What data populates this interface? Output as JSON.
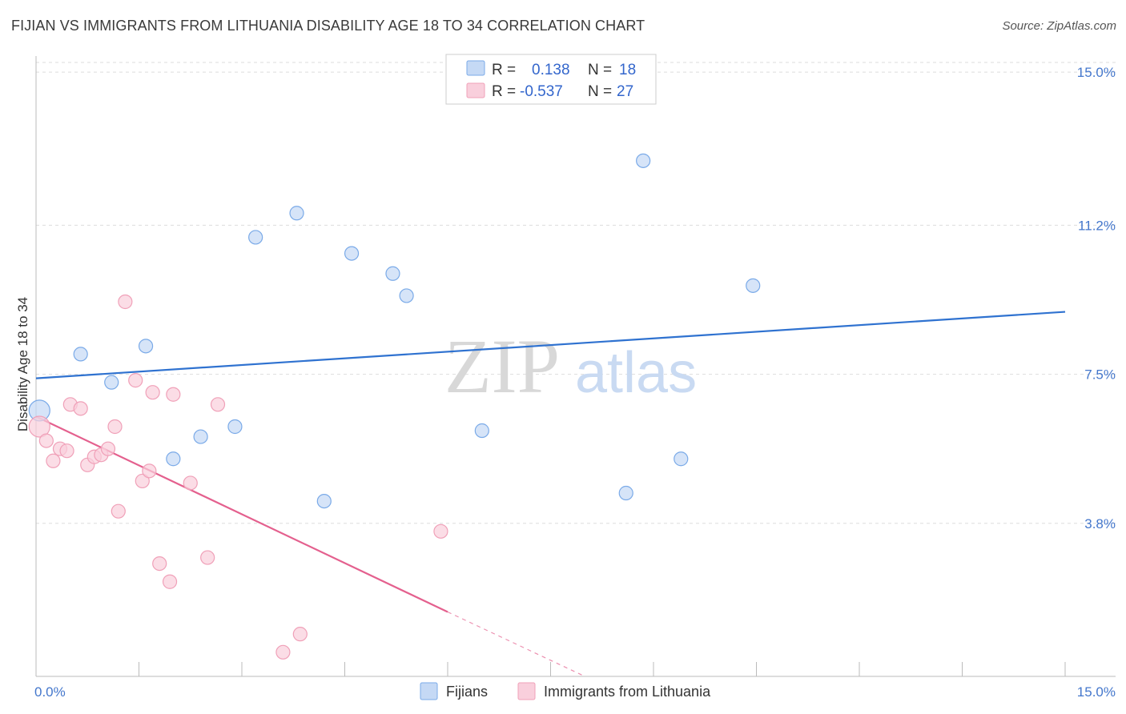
{
  "title": "FIJIAN VS IMMIGRANTS FROM LITHUANIA DISABILITY AGE 18 TO 34 CORRELATION CHART",
  "source": "Source: ZipAtlas.com",
  "watermark": {
    "zip": "ZIP",
    "atlas": "atlas"
  },
  "chart_data": {
    "type": "scatter",
    "title": "FIJIAN VS IMMIGRANTS FROM LITHUANIA DISABILITY AGE 18 TO 34 CORRELATION CHART",
    "xlabel": "",
    "ylabel": "Disability Age 18 to 34",
    "xlim": [
      0,
      15
    ],
    "ylim": [
      0,
      15.4
    ],
    "x_tick_labels": [
      "0.0%",
      "15.0%"
    ],
    "y_ticks": [
      3.8,
      7.5,
      11.2,
      15.0
    ],
    "y_tick_labels": [
      "3.8%",
      "7.5%",
      "11.2%",
      "15.0%"
    ],
    "legend": {
      "rows": [
        {
          "r_label": "R =",
          "r_value": "0.138",
          "n_label": "N =",
          "n_value": "18"
        },
        {
          "r_label": "R =",
          "r_value": "-0.537",
          "n_label": "N =",
          "n_value": "27"
        }
      ]
    },
    "series": [
      {
        "name": "Fijians",
        "color": "#7aaae8",
        "fill": "#c5d9f5",
        "trend": {
          "x0": 0,
          "y0": 7.4,
          "x1": 15,
          "y1": 9.05,
          "color": "#2f72d0"
        },
        "points": [
          {
            "x": 0.05,
            "y": 6.6,
            "big": true
          },
          {
            "x": 0.65,
            "y": 8.0
          },
          {
            "x": 1.1,
            "y": 7.3
          },
          {
            "x": 1.6,
            "y": 8.2
          },
          {
            "x": 2.0,
            "y": 5.4
          },
          {
            "x": 2.4,
            "y": 5.95
          },
          {
            "x": 2.9,
            "y": 6.2
          },
          {
            "x": 3.2,
            "y": 10.9
          },
          {
            "x": 3.8,
            "y": 11.5
          },
          {
            "x": 4.2,
            "y": 4.35
          },
          {
            "x": 4.6,
            "y": 10.5
          },
          {
            "x": 5.2,
            "y": 10.0
          },
          {
            "x": 5.4,
            "y": 9.45
          },
          {
            "x": 6.5,
            "y": 6.1
          },
          {
            "x": 8.6,
            "y": 4.55
          },
          {
            "x": 8.85,
            "y": 12.8
          },
          {
            "x": 9.4,
            "y": 5.4
          },
          {
            "x": 10.45,
            "y": 9.7
          }
        ]
      },
      {
        "name": "Immigrants from Lithuania",
        "color": "#f0a0b8",
        "fill": "#f9cfdc",
        "trend": {
          "x0": 0,
          "y0": 6.45,
          "x1": 6.0,
          "y1": 1.6,
          "color": "#e4608e"
        },
        "trend_dashed": {
          "x0": 6.0,
          "y0": 1.6,
          "x1": 8.0,
          "y1": 0.0
        },
        "points": [
          {
            "x": 0.05,
            "y": 6.2,
            "big": true
          },
          {
            "x": 0.15,
            "y": 5.85
          },
          {
            "x": 0.25,
            "y": 5.35
          },
          {
            "x": 0.35,
            "y": 5.65
          },
          {
            "x": 0.45,
            "y": 5.6
          },
          {
            "x": 0.5,
            "y": 6.75
          },
          {
            "x": 0.65,
            "y": 6.65
          },
          {
            "x": 0.75,
            "y": 5.25
          },
          {
            "x": 0.85,
            "y": 5.45
          },
          {
            "x": 0.95,
            "y": 5.5
          },
          {
            "x": 1.05,
            "y": 5.65
          },
          {
            "x": 1.15,
            "y": 6.2
          },
          {
            "x": 1.2,
            "y": 4.1
          },
          {
            "x": 1.3,
            "y": 9.3
          },
          {
            "x": 1.45,
            "y": 7.35
          },
          {
            "x": 1.55,
            "y": 4.85
          },
          {
            "x": 1.65,
            "y": 5.1
          },
          {
            "x": 1.7,
            "y": 7.05
          },
          {
            "x": 1.8,
            "y": 2.8
          },
          {
            "x": 1.95,
            "y": 2.35
          },
          {
            "x": 2.0,
            "y": 7.0
          },
          {
            "x": 2.25,
            "y": 4.8
          },
          {
            "x": 2.5,
            "y": 2.95
          },
          {
            "x": 2.65,
            "y": 6.75
          },
          {
            "x": 3.6,
            "y": 0.6
          },
          {
            "x": 3.85,
            "y": 1.05
          },
          {
            "x": 5.9,
            "y": 3.6
          }
        ]
      }
    ]
  }
}
